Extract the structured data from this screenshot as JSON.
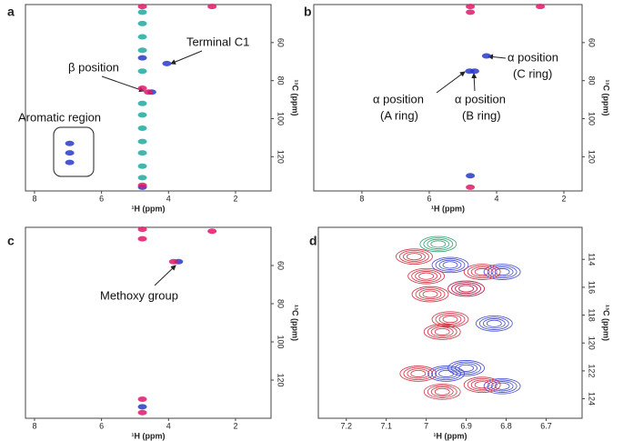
{
  "chart_data": [
    {
      "type": "nmr",
      "panel_label": "a",
      "xlabel": "¹H (ppm)",
      "ylabel": "¹³C (ppm)",
      "xlim": [
        8.27,
        0.94
      ],
      "ylim": [
        40,
        138
      ],
      "xticks": [
        8,
        6,
        4,
        2
      ],
      "yticks": [
        60,
        80,
        100,
        120
      ],
      "annotations": [
        "Terminal C1",
        "β position",
        "Aromatic region"
      ],
      "series": [
        {
          "color": "#20a8a0",
          "x": [
            4.78,
            4.78,
            4.78,
            4.78,
            4.78,
            4.78,
            4.78,
            4.78,
            4.78,
            4.78,
            4.78,
            4.78
          ],
          "y": [
            44,
            50,
            57,
            64,
            75,
            92,
            98,
            105,
            112,
            118,
            125,
            131
          ]
        },
        {
          "color": "#2838c8",
          "x": [
            4.5,
            4.05,
            6.95,
            6.95,
            6.95,
            4.78,
            4.78
          ],
          "y": [
            86,
            71,
            113,
            118,
            123,
            68,
            136
          ]
        },
        {
          "color": "#e0186a",
          "x": [
            4.78,
            2.7,
            4.78,
            4.78,
            4.6
          ],
          "y": [
            41,
            41,
            84,
            135,
            86
          ]
        }
      ]
    },
    {
      "type": "nmr",
      "panel_label": "b",
      "xlabel": "¹H (ppm)",
      "ylabel": "¹³C (ppm)",
      "xlim": [
        9.43,
        1.46
      ],
      "ylim": [
        40,
        138
      ],
      "xticks": [
        8,
        6,
        4,
        2
      ],
      "yticks": [
        60,
        80,
        100,
        120
      ],
      "annotations": [
        [
          "α position",
          "(C ring)"
        ],
        [
          "α position",
          "(A ring)"
        ],
        [
          "α position",
          "(B ring)"
        ]
      ],
      "series": [
        {
          "color": "#2838c8",
          "x": [
            4.3,
            4.8,
            4.65,
            4.78
          ],
          "y": [
            67,
            75,
            75,
            130
          ]
        },
        {
          "color": "#e0186a",
          "x": [
            4.78,
            2.7,
            4.78,
            4.78
          ],
          "y": [
            41,
            41,
            44,
            136
          ]
        }
      ]
    },
    {
      "type": "nmr",
      "panel_label": "c",
      "xlabel": "¹H (ppm)",
      "ylabel": "¹³C (ppm)",
      "xlim": [
        8.27,
        0.94
      ],
      "ylim": [
        40,
        140
      ],
      "xticks": [
        8,
        6,
        4,
        2
      ],
      "yticks": [
        60,
        80,
        100,
        120
      ],
      "annotations": [
        "Methoxy group"
      ],
      "series": [
        {
          "color": "#2838c8",
          "x": [
            3.7,
            4.78
          ],
          "y": [
            58,
            134
          ]
        },
        {
          "color": "#e0186a",
          "x": [
            4.78,
            4.78,
            2.7,
            3.85,
            4.78,
            4.78
          ],
          "y": [
            41,
            46,
            42,
            58,
            130,
            137
          ]
        }
      ]
    },
    {
      "type": "contour",
      "panel_label": "d",
      "xlabel": "¹H (ppm)",
      "ylabel": "¹³C (ppm)",
      "xlim": [
        7.27,
        6.61
      ],
      "ylim": [
        111.7,
        125.4
      ],
      "xticks": [
        7.2,
        7.1,
        7.0,
        6.9,
        6.8,
        6.7
      ],
      "yticks": [
        114,
        116,
        118,
        120,
        122,
        124
      ],
      "series": [
        {
          "color": "#4048d0",
          "x": [
            6.81,
            6.83,
            6.81,
            6.94,
            6.95,
            6.9,
            6.9
          ],
          "y": [
            114.9,
            118.6,
            123.1,
            114.4,
            122.2,
            121.8,
            116.1
          ]
        },
        {
          "color": "#d03040",
          "x": [
            7.03,
            7.0,
            6.99,
            6.86,
            6.94,
            6.96,
            7.02,
            6.96,
            6.86,
            6.9
          ],
          "y": [
            113.8,
            115.2,
            116.5,
            114.9,
            118.3,
            119.2,
            122.2,
            123.5,
            123.0,
            116.1
          ]
        },
        {
          "color": "#30a070",
          "x": [
            6.97
          ],
          "y": [
            112.9
          ]
        }
      ]
    }
  ]
}
